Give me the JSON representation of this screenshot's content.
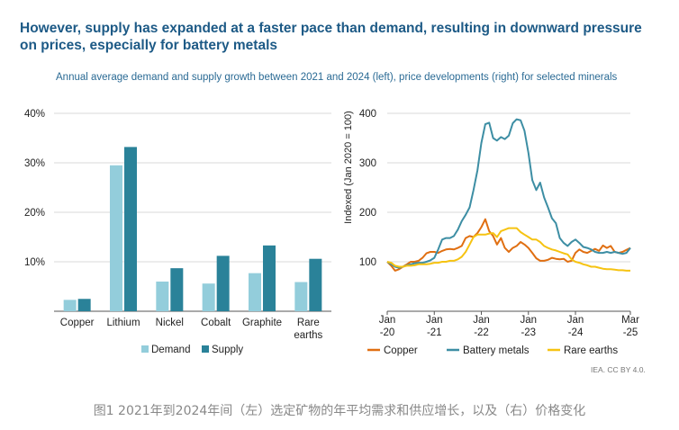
{
  "title": "However, supply has expanded at a faster pace than demand, resulting in downward pressure on prices, especially for battery metals",
  "subtitle": "Annual average demand and supply growth between 2021 and 2024 (left), price developments (right) for selected minerals",
  "credit": "IEA. CC BY 4.0.",
  "caption": "图1 2021年到2024年间（左）选定矿物的年平均需求和供应增长，以及（右）价格变化",
  "colors": {
    "demand": "#93cddb",
    "supply": "#2a8299",
    "copper": "#e06f12",
    "battery": "#3d8ea4",
    "rare": "#f6c312"
  },
  "chart_data": [
    {
      "type": "bar",
      "categories": [
        "Copper",
        "Lithium",
        "Nickel",
        "Cobalt",
        "Graphite",
        "Rare earths"
      ],
      "series": [
        {
          "name": "Demand",
          "values": [
            2.3,
            29.5,
            6.0,
            5.6,
            7.7,
            5.9
          ]
        },
        {
          "name": "Supply",
          "values": [
            2.5,
            33.2,
            8.7,
            11.2,
            13.3,
            10.6
          ]
        }
      ],
      "yticks": [
        "40%",
        "30%",
        "20%",
        "10%"
      ],
      "ylim": [
        0,
        40
      ],
      "legend": [
        "Demand",
        "Supply"
      ]
    },
    {
      "type": "line",
      "ylabel": "Indexed (Jan 2020 = 100)",
      "ylim": [
        0,
        400
      ],
      "yticks": [
        "400",
        "300",
        "200",
        "100"
      ],
      "xlim": [
        0,
        62
      ],
      "xtick_months": [
        0,
        12,
        24,
        36,
        48,
        62
      ],
      "xticks": [
        [
          "Jan",
          "-20"
        ],
        [
          "Jan",
          "-21"
        ],
        [
          "Jan",
          "-22"
        ],
        [
          "Jan",
          "-23"
        ],
        [
          "Jan",
          "-24"
        ],
        [
          "Mar",
          "-25"
        ]
      ],
      "series": [
        {
          "name": "Copper",
          "colorKey": "copper",
          "x": [
            0,
            1,
            2,
            3,
            4,
            5,
            6,
            7,
            8,
            9,
            10,
            11,
            12,
            13,
            14,
            15,
            16,
            17,
            18,
            19,
            20,
            21,
            22,
            23,
            24,
            25,
            26,
            27,
            28,
            29,
            30,
            31,
            32,
            33,
            34,
            35,
            36,
            37,
            38,
            39,
            40,
            41,
            42,
            43,
            44,
            45,
            46,
            47,
            48,
            49,
            50,
            51,
            52,
            53,
            54,
            55,
            56,
            57,
            58,
            59,
            60,
            61,
            62
          ],
          "y": [
            100,
            92,
            82,
            85,
            90,
            95,
            100,
            100,
            102,
            108,
            117,
            120,
            120,
            118,
            122,
            125,
            126,
            125,
            128,
            132,
            148,
            152,
            150,
            158,
            170,
            186,
            162,
            152,
            135,
            148,
            128,
            120,
            128,
            132,
            140,
            135,
            128,
            118,
            107,
            102,
            102,
            104,
            108,
            106,
            105,
            106,
            100,
            102,
            118,
            125,
            120,
            118,
            122,
            126,
            122,
            133,
            128,
            132,
            120,
            118,
            120,
            124,
            128
          ]
        },
        {
          "name": "Battery metals",
          "colorKey": "battery",
          "x": [
            0,
            1,
            2,
            3,
            4,
            5,
            6,
            7,
            8,
            9,
            10,
            11,
            12,
            13,
            14,
            15,
            16,
            17,
            18,
            19,
            20,
            21,
            22,
            23,
            24,
            25,
            26,
            27,
            28,
            29,
            30,
            31,
            32,
            33,
            34,
            35,
            36,
            37,
            38,
            39,
            40,
            41,
            42,
            43,
            44,
            45,
            46,
            47,
            48,
            49,
            50,
            51,
            52,
            53,
            54,
            55,
            56,
            57,
            58,
            59,
            60,
            61,
            62
          ],
          "y": [
            100,
            95,
            90,
            88,
            90,
            93,
            95,
            97,
            98,
            98,
            100,
            103,
            108,
            125,
            145,
            148,
            148,
            152,
            165,
            182,
            195,
            210,
            245,
            285,
            340,
            378,
            381,
            350,
            345,
            352,
            348,
            355,
            380,
            388,
            386,
            365,
            320,
            265,
            245,
            260,
            230,
            210,
            188,
            178,
            148,
            138,
            132,
            140,
            145,
            138,
            130,
            128,
            125,
            120,
            118,
            118,
            120,
            118,
            120,
            118,
            116,
            118,
            128
          ]
        },
        {
          "name": "Rare earths",
          "colorKey": "rare",
          "x": [
            0,
            1,
            2,
            3,
            4,
            5,
            6,
            7,
            8,
            9,
            10,
            11,
            12,
            13,
            14,
            15,
            16,
            17,
            18,
            19,
            20,
            21,
            22,
            23,
            24,
            25,
            26,
            27,
            28,
            29,
            30,
            31,
            32,
            33,
            34,
            35,
            36,
            37,
            38,
            39,
            40,
            41,
            42,
            43,
            44,
            45,
            46,
            47,
            48,
            49,
            50,
            51,
            52,
            53,
            54,
            55,
            56,
            57,
            58,
            59,
            60,
            61,
            62
          ],
          "y": [
            100,
            98,
            92,
            90,
            90,
            92,
            92,
            93,
            95,
            95,
            95,
            96,
            98,
            98,
            100,
            100,
            102,
            102,
            105,
            110,
            120,
            135,
            150,
            155,
            155,
            155,
            157,
            158,
            150,
            162,
            165,
            168,
            168,
            168,
            160,
            155,
            150,
            145,
            145,
            140,
            132,
            128,
            125,
            123,
            120,
            117,
            115,
            105,
            100,
            98,
            95,
            93,
            90,
            90,
            88,
            86,
            85,
            85,
            84,
            83,
            83,
            82,
            82
          ]
        }
      ]
    }
  ]
}
